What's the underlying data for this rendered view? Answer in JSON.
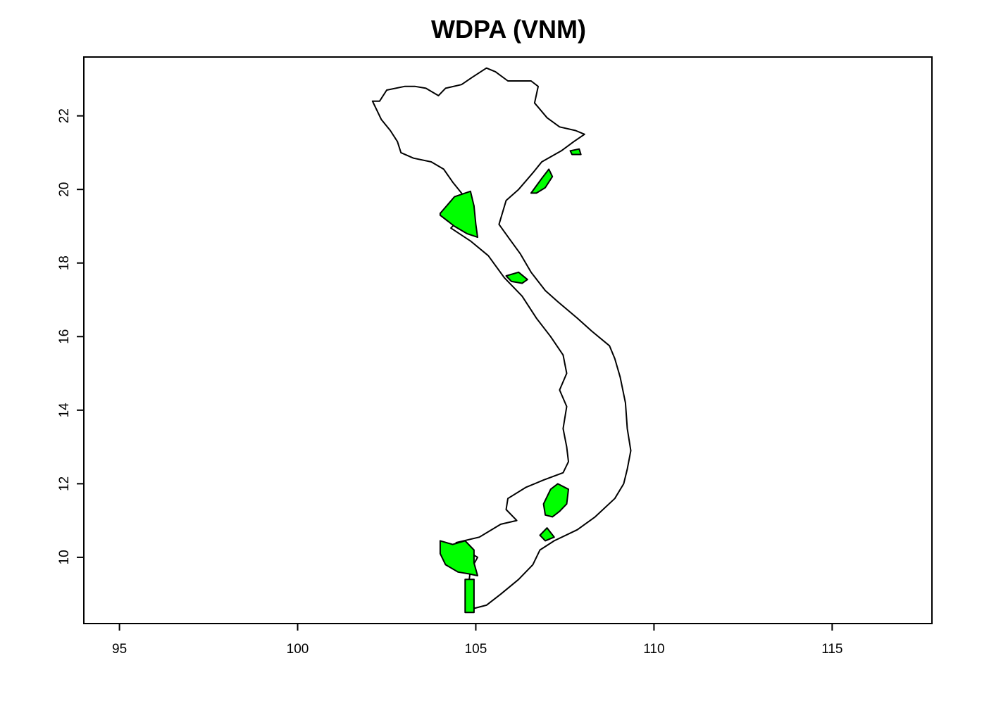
{
  "title": "WDPA (VNM)",
  "chart_data": {
    "type": "map",
    "title": "WDPA (VNM)",
    "xlim": [
      94.0,
      117.8
    ],
    "ylim": [
      8.2,
      23.6
    ],
    "x_ticks": [
      95,
      100,
      105,
      110,
      115
    ],
    "x_tick_labels": [
      "95",
      "100",
      "105",
      "110",
      "115"
    ],
    "y_ticks": [
      10,
      12,
      14,
      16,
      18,
      20,
      22
    ],
    "y_tick_labels": [
      "10",
      "12",
      "14",
      "16",
      "18",
      "20",
      "22"
    ],
    "grid": false,
    "colors": {
      "protected_area_fill": "#00ff00",
      "outline": "#000000",
      "background": "#ffffff"
    },
    "country_outline": [
      [
        102.3,
        22.4
      ],
      [
        102.5,
        22.7
      ],
      [
        103.0,
        22.8
      ],
      [
        103.3,
        22.8
      ],
      [
        103.6,
        22.75
      ],
      [
        103.95,
        22.55
      ],
      [
        104.15,
        22.75
      ],
      [
        104.6,
        22.85
      ],
      [
        104.9,
        23.05
      ],
      [
        105.3,
        23.3
      ],
      [
        105.55,
        23.2
      ],
      [
        105.9,
        22.95
      ],
      [
        106.55,
        22.95
      ],
      [
        106.75,
        22.8
      ],
      [
        106.65,
        22.35
      ],
      [
        107.0,
        21.95
      ],
      [
        107.35,
        21.7
      ],
      [
        107.8,
        21.6
      ],
      [
        108.05,
        21.5
      ],
      [
        107.75,
        21.3
      ],
      [
        107.4,
        21.05
      ],
      [
        106.85,
        20.75
      ],
      [
        106.6,
        20.45
      ],
      [
        106.2,
        20.0
      ],
      [
        105.85,
        19.7
      ],
      [
        105.65,
        19.05
      ],
      [
        105.95,
        18.65
      ],
      [
        106.25,
        18.25
      ],
      [
        106.55,
        17.75
      ],
      [
        106.95,
        17.25
      ],
      [
        107.3,
        16.95
      ],
      [
        107.85,
        16.5
      ],
      [
        108.25,
        16.15
      ],
      [
        108.75,
        15.75
      ],
      [
        108.9,
        15.4
      ],
      [
        109.05,
        14.9
      ],
      [
        109.2,
        14.2
      ],
      [
        109.25,
        13.5
      ],
      [
        109.35,
        12.9
      ],
      [
        109.25,
        12.4
      ],
      [
        109.15,
        12.0
      ],
      [
        108.9,
        11.6
      ],
      [
        108.35,
        11.1
      ],
      [
        107.85,
        10.75
      ],
      [
        107.2,
        10.45
      ],
      [
        106.8,
        10.2
      ],
      [
        106.6,
        9.8
      ],
      [
        106.2,
        9.4
      ],
      [
        105.7,
        9.0
      ],
      [
        105.3,
        8.7
      ],
      [
        104.9,
        8.6
      ],
      [
        104.75,
        8.8
      ],
      [
        104.8,
        9.3
      ],
      [
        104.85,
        9.65
      ],
      [
        105.05,
        10.0
      ],
      [
        104.6,
        10.25
      ],
      [
        104.45,
        10.4
      ],
      [
        105.1,
        10.55
      ],
      [
        105.7,
        10.9
      ],
      [
        106.15,
        11.0
      ],
      [
        105.85,
        11.3
      ],
      [
        105.9,
        11.6
      ],
      [
        106.4,
        11.9
      ],
      [
        106.9,
        12.1
      ],
      [
        107.45,
        12.3
      ],
      [
        107.6,
        12.6
      ],
      [
        107.55,
        13.0
      ],
      [
        107.45,
        13.5
      ],
      [
        107.55,
        14.1
      ],
      [
        107.35,
        14.55
      ],
      [
        107.55,
        15.0
      ],
      [
        107.45,
        15.5
      ],
      [
        107.1,
        16.0
      ],
      [
        106.7,
        16.5
      ],
      [
        106.3,
        17.1
      ],
      [
        105.8,
        17.6
      ],
      [
        105.35,
        18.2
      ],
      [
        104.85,
        18.6
      ],
      [
        104.3,
        18.95
      ],
      [
        104.6,
        19.25
      ],
      [
        104.95,
        19.55
      ],
      [
        104.6,
        19.9
      ],
      [
        104.35,
        20.2
      ],
      [
        104.1,
        20.55
      ],
      [
        103.75,
        20.75
      ],
      [
        103.25,
        20.85
      ],
      [
        102.9,
        21.0
      ],
      [
        102.8,
        21.3
      ],
      [
        102.6,
        21.6
      ],
      [
        102.35,
        21.9
      ],
      [
        102.1,
        22.4
      ]
    ],
    "protected_areas": [
      {
        "name": "",
        "coords": [
          [
            104.0,
            19.35
          ],
          [
            104.4,
            19.8
          ],
          [
            104.85,
            19.95
          ],
          [
            104.95,
            19.55
          ],
          [
            105.0,
            19.05
          ],
          [
            105.05,
            18.7
          ],
          [
            104.75,
            18.8
          ],
          [
            104.4,
            19.0
          ],
          [
            104.0,
            19.3
          ]
        ]
      },
      {
        "name": "",
        "coords": [
          [
            104.0,
            10.45
          ],
          [
            104.0,
            10.1
          ],
          [
            104.15,
            9.8
          ],
          [
            104.5,
            9.6
          ],
          [
            104.8,
            9.55
          ],
          [
            105.05,
            9.5
          ],
          [
            104.95,
            9.85
          ],
          [
            104.95,
            10.2
          ],
          [
            104.7,
            10.45
          ],
          [
            104.35,
            10.35
          ]
        ]
      },
      {
        "name": "",
        "coords": [
          [
            104.7,
            9.4
          ],
          [
            104.95,
            9.4
          ],
          [
            104.95,
            8.5
          ],
          [
            104.7,
            8.5
          ]
        ]
      },
      {
        "name": "",
        "coords": [
          [
            106.9,
            11.45
          ],
          [
            107.1,
            11.85
          ],
          [
            107.3,
            12.0
          ],
          [
            107.6,
            11.85
          ],
          [
            107.55,
            11.45
          ],
          [
            107.35,
            11.25
          ],
          [
            107.15,
            11.1
          ],
          [
            106.95,
            11.15
          ]
        ]
      },
      {
        "name": "",
        "coords": [
          [
            106.55,
            19.9
          ],
          [
            106.85,
            20.3
          ],
          [
            107.05,
            20.55
          ],
          [
            107.15,
            20.35
          ],
          [
            106.95,
            20.05
          ],
          [
            106.7,
            19.9
          ]
        ]
      },
      {
        "name": "",
        "coords": [
          [
            105.85,
            17.65
          ],
          [
            106.2,
            17.75
          ],
          [
            106.45,
            17.55
          ],
          [
            106.3,
            17.45
          ],
          [
            106.0,
            17.5
          ]
        ]
      },
      {
        "name": "",
        "coords": [
          [
            106.8,
            10.6
          ],
          [
            107.0,
            10.8
          ],
          [
            107.2,
            10.55
          ],
          [
            106.95,
            10.45
          ]
        ]
      },
      {
        "name": "",
        "coords": [
          [
            107.65,
            21.05
          ],
          [
            107.9,
            21.1
          ],
          [
            107.95,
            20.95
          ],
          [
            107.7,
            20.95
          ]
        ]
      }
    ]
  }
}
